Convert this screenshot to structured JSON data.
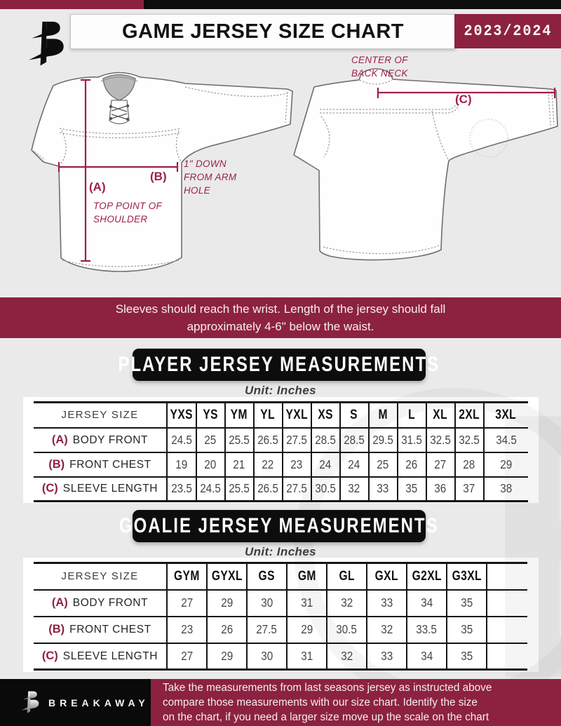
{
  "theme": {
    "maroon": "#8C2240",
    "black": "#0D0D0D",
    "page_background": "#EAEAEA",
    "annotation_maroon": "#9E2043",
    "table_line": "#141414"
  },
  "header": {
    "title": "GAME JERSEY SIZE CHART",
    "season": "2023/2024",
    "logo": "breakaway-b-logo"
  },
  "diagram": {
    "front_jersey": {
      "a_label": "(A)",
      "a_note": "TOP POINT OF SHOULDER",
      "b_label": "(B)",
      "b_note": "1\" DOWN FROM ARM HOLE"
    },
    "back_jersey": {
      "c_label": "(C)",
      "c_note": "CENTER OF BACK NECK"
    }
  },
  "notice": {
    "text": "Sleeves should reach the wrist. Length of the jersey should fall approximately 4-6\" below the waist."
  },
  "player_section": {
    "title": "PLAYER JERSEY MEASUREMENTS",
    "unit": "Unit: Inches",
    "table": {
      "size_header": "JERSEY SIZE",
      "sizes": [
        "YXS",
        "YS",
        "YM",
        "YL",
        "YXL",
        "XS",
        "S",
        "M",
        "L",
        "XL",
        "2XL",
        "3XL"
      ],
      "rows": [
        {
          "key": "(A)",
          "label": "BODY FRONT",
          "values": [
            "24.5",
            "25",
            "25.5",
            "26.5",
            "27.5",
            "28.5",
            "28.5",
            "29.5",
            "31.5",
            "32.5",
            "32.5",
            "34.5"
          ]
        },
        {
          "key": "(B)",
          "label": "FRONT CHEST",
          "values": [
            "19",
            "20",
            "21",
            "22",
            "23",
            "24",
            "24",
            "25",
            "26",
            "27",
            "28",
            "29"
          ]
        },
        {
          "key": "(C)",
          "label": "SLEEVE LENGTH",
          "values": [
            "23.5",
            "24.5",
            "25.5",
            "26.5",
            "27.5",
            "30.5",
            "32",
            "33",
            "35",
            "36",
            "37",
            "38"
          ]
        }
      ]
    }
  },
  "goalie_section": {
    "title": "GOALIE JERSEY MEASUREMENTS",
    "unit": "Unit: Inches",
    "table": {
      "size_header": "JERSEY SIZE",
      "sizes": [
        "GYM",
        "GYXL",
        "GS",
        "GM",
        "GL",
        "GXL",
        "G2XL",
        "G3XL",
        ""
      ],
      "rows": [
        {
          "key": "(A)",
          "label": "BODY FRONT",
          "values": [
            "27",
            "29",
            "30",
            "31",
            "32",
            "33",
            "34",
            "35",
            ""
          ]
        },
        {
          "key": "(B)",
          "label": "FRONT CHEST",
          "values": [
            "23",
            "26",
            "27.5",
            "29",
            "30.5",
            "32",
            "33.5",
            "35",
            ""
          ]
        },
        {
          "key": "(C)",
          "label": "SLEEVE LENGTH",
          "values": [
            "27",
            "29",
            "30",
            "31",
            "32",
            "33",
            "34",
            "35",
            ""
          ]
        }
      ]
    }
  },
  "footer": {
    "brand": "BREAKAWAY",
    "lines": [
      "Take the measurements from last seasons jersey as instructed above",
      "compare those measurements  with our size chart. Identify the size",
      "on the chart, if you need a larger size move up the scale on the chart"
    ]
  }
}
